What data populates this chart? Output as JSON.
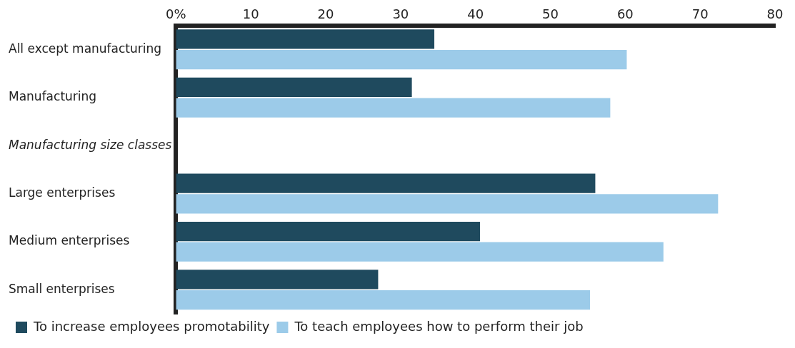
{
  "chart_data": {
    "type": "bar",
    "orientation": "horizontal",
    "categories": [
      "All except manufacturing",
      "Manufacturing",
      "Manufacturing size classes",
      "Large enterprises",
      "Medium enterprises",
      "Small enterprises"
    ],
    "series": [
      {
        "name": "To increase employees promotability",
        "color": "#1f4a5e",
        "values": [
          34.5,
          31.5,
          null,
          56,
          40.6,
          27
        ]
      },
      {
        "name": "To teach employees how to perform their job",
        "color": "#9ccbe9",
        "values": [
          60.2,
          58,
          null,
          72.4,
          65.1,
          55.3
        ]
      }
    ],
    "xlim": [
      0,
      80
    ],
    "xticks": [
      {
        "value": 0,
        "label": "0%"
      },
      10,
      20,
      30,
      40,
      50,
      60,
      70,
      80
    ],
    "grid": false,
    "legend": "bottom left"
  }
}
